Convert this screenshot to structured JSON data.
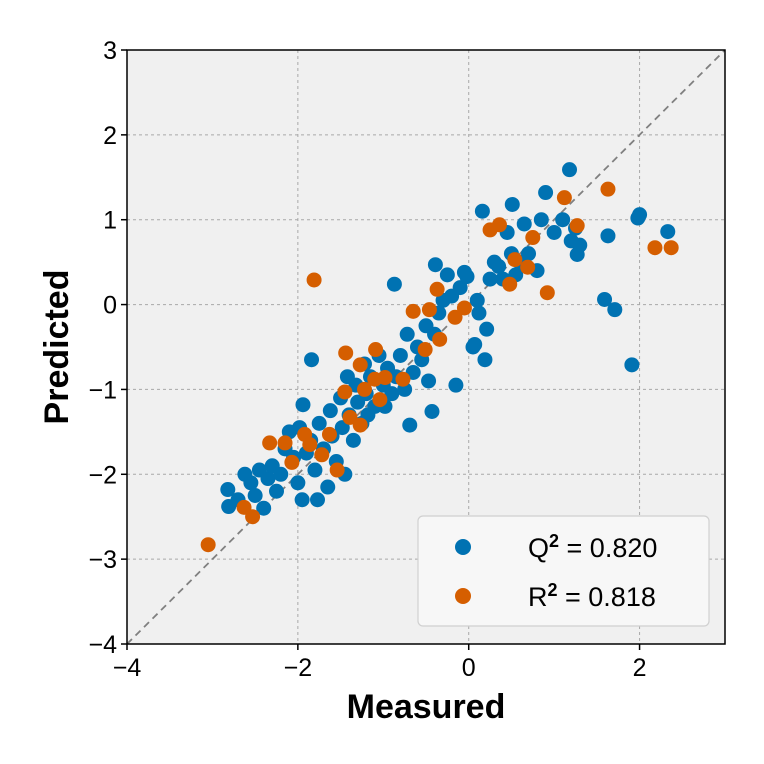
{
  "chart_data": {
    "type": "scatter",
    "title": "",
    "xlabel": "Measured",
    "ylabel": "Predicted",
    "xlim": [
      -4,
      3
    ],
    "ylim": [
      -4,
      3
    ],
    "xticks": [
      "−4",
      "−2",
      "0",
      "2"
    ],
    "xtick_values": [
      -4,
      -2,
      0,
      2
    ],
    "yticks": [
      "−4",
      "−3",
      "−2",
      "−1",
      "0",
      "1",
      "2",
      "3"
    ],
    "ytick_values": [
      -4,
      -3,
      -2,
      -1,
      0,
      1,
      2,
      3
    ],
    "grid": true,
    "reference_line": {
      "style": "dashed",
      "from": [
        -4,
        -4
      ],
      "to": [
        3,
        3
      ],
      "color": "#808080"
    },
    "legend_position": "bottom-right",
    "series": [
      {
        "name": "Q² = 0.820",
        "label_base": "Q",
        "label_sup": "2",
        "label_value": " = 0.820",
        "color": "#0072B2",
        "points": [
          [
            -2.82,
            -2.18
          ],
          [
            -2.81,
            -2.38
          ],
          [
            -2.7,
            -2.3
          ],
          [
            -2.62,
            -2.0
          ],
          [
            -2.55,
            -2.1
          ],
          [
            -2.5,
            -2.25
          ],
          [
            -2.45,
            -1.95
          ],
          [
            -2.4,
            -2.4
          ],
          [
            -2.35,
            -2.05
          ],
          [
            -2.3,
            -1.9
          ],
          [
            -2.25,
            -2.2
          ],
          [
            -2.2,
            -2.0
          ],
          [
            -2.15,
            -1.7
          ],
          [
            -2.1,
            -1.5
          ],
          [
            -2.05,
            -1.8
          ],
          [
            -2.0,
            -2.1
          ],
          [
            -1.98,
            -1.45
          ],
          [
            -1.95,
            -2.3
          ],
          [
            -1.94,
            -1.18
          ],
          [
            -1.9,
            -1.75
          ],
          [
            -1.85,
            -1.6
          ],
          [
            -1.84,
            -0.65
          ],
          [
            -1.8,
            -1.95
          ],
          [
            -1.77,
            -2.3
          ],
          [
            -1.75,
            -1.4
          ],
          [
            -1.7,
            -1.7
          ],
          [
            -1.65,
            -2.15
          ],
          [
            -1.62,
            -1.25
          ],
          [
            -1.6,
            -1.55
          ],
          [
            -1.55,
            -1.85
          ],
          [
            -1.5,
            -1.1
          ],
          [
            -1.48,
            -1.45
          ],
          [
            -1.45,
            -2.0
          ],
          [
            -1.42,
            -0.85
          ],
          [
            -1.4,
            -1.3
          ],
          [
            -1.35,
            -1.6
          ],
          [
            -1.32,
            -0.95
          ],
          [
            -1.3,
            -1.15
          ],
          [
            -1.25,
            -1.4
          ],
          [
            -1.22,
            -0.7
          ],
          [
            -1.2,
            -1.05
          ],
          [
            -1.18,
            -1.3
          ],
          [
            -1.15,
            -0.85
          ],
          [
            -1.1,
            -1.2
          ],
          [
            -1.05,
            -0.6
          ],
          [
            -1.0,
            -0.95
          ],
          [
            -0.98,
            -1.2
          ],
          [
            -0.95,
            -0.75
          ],
          [
            -0.9,
            -1.05
          ],
          [
            -0.87,
            0.24
          ],
          [
            -0.85,
            -0.85
          ],
          [
            -0.8,
            -0.6
          ],
          [
            -0.75,
            -1.0
          ],
          [
            -0.72,
            -0.35
          ],
          [
            -0.69,
            -1.42
          ],
          [
            -0.65,
            -0.8
          ],
          [
            -0.6,
            -0.5
          ],
          [
            -0.55,
            -0.65
          ],
          [
            -0.5,
            -0.25
          ],
          [
            -0.47,
            -0.9
          ],
          [
            -0.43,
            -1.26
          ],
          [
            -0.4,
            -0.35
          ],
          [
            -0.39,
            0.47
          ],
          [
            -0.35,
            -0.1
          ],
          [
            -0.3,
            0.05
          ],
          [
            -0.25,
            0.35
          ],
          [
            -0.2,
            0.1
          ],
          [
            -0.15,
            -0.95
          ],
          [
            -0.1,
            0.2
          ],
          [
            -0.05,
            0.38
          ],
          [
            -0.02,
            0.33
          ],
          [
            0.05,
            -0.5
          ],
          [
            0.07,
            -0.47
          ],
          [
            0.1,
            0.05
          ],
          [
            0.12,
            -0.1
          ],
          [
            0.16,
            1.1
          ],
          [
            0.19,
            -0.65
          ],
          [
            0.21,
            -0.29
          ],
          [
            0.25,
            0.3
          ],
          [
            0.3,
            0.5
          ],
          [
            0.35,
            0.45
          ],
          [
            0.4,
            0.3
          ],
          [
            0.45,
            0.85
          ],
          [
            0.5,
            0.6
          ],
          [
            0.51,
            1.18
          ],
          [
            0.55,
            0.35
          ],
          [
            0.6,
            0.5
          ],
          [
            0.65,
            0.95
          ],
          [
            0.7,
            0.6
          ],
          [
            0.8,
            0.4
          ],
          [
            0.85,
            1.0
          ],
          [
            0.9,
            1.32
          ],
          [
            1.0,
            0.85
          ],
          [
            1.1,
            1.0
          ],
          [
            1.18,
            1.59
          ],
          [
            1.2,
            0.75
          ],
          [
            1.25,
            0.9
          ],
          [
            1.27,
            0.59
          ],
          [
            1.3,
            0.7
          ],
          [
            1.59,
            0.06
          ],
          [
            1.63,
            0.81
          ],
          [
            1.71,
            -0.06
          ],
          [
            1.91,
            -0.71
          ],
          [
            1.98,
            1.02
          ],
          [
            2.0,
            1.06
          ],
          [
            2.33,
            0.86
          ]
        ]
      },
      {
        "name": "R² = 0.818",
        "label_base": "R",
        "label_sup": "2",
        "label_value": " = 0.818",
        "color": "#D55E00",
        "points": [
          [
            -3.05,
            -2.83
          ],
          [
            -2.63,
            -2.39
          ],
          [
            -2.53,
            -2.5
          ],
          [
            -1.81,
            0.29
          ],
          [
            -2.33,
            -1.63
          ],
          [
            -2.15,
            -1.63
          ],
          [
            -2.07,
            -1.86
          ],
          [
            -1.92,
            -1.53
          ],
          [
            -1.86,
            -1.65
          ],
          [
            -1.72,
            -1.77
          ],
          [
            -1.63,
            -1.53
          ],
          [
            -1.54,
            -1.95
          ],
          [
            -1.45,
            -1.03
          ],
          [
            -1.39,
            -1.33
          ],
          [
            -1.27,
            -1.42
          ],
          [
            -1.22,
            -1.0
          ],
          [
            -1.1,
            -0.88
          ],
          [
            -1.04,
            -1.12
          ],
          [
            -0.98,
            -0.86
          ],
          [
            -0.77,
            -0.88
          ],
          [
            -0.65,
            -0.08
          ],
          [
            -0.51,
            -0.53
          ],
          [
            -0.46,
            -0.06
          ],
          [
            -0.37,
            0.18
          ],
          [
            -0.34,
            -0.41
          ],
          [
            -0.16,
            -0.15
          ],
          [
            -0.05,
            -0.04
          ],
          [
            0.25,
            0.88
          ],
          [
            0.36,
            0.94
          ],
          [
            0.48,
            0.24
          ],
          [
            0.54,
            0.53
          ],
          [
            0.69,
            0.44
          ],
          [
            0.75,
            0.79
          ],
          [
            0.92,
            0.14
          ],
          [
            1.12,
            1.26
          ],
          [
            1.27,
            0.93
          ],
          [
            1.63,
            1.36
          ],
          [
            2.18,
            0.67
          ],
          [
            2.37,
            0.67
          ],
          [
            -1.44,
            -0.57
          ],
          [
            -1.09,
            -0.53
          ],
          [
            -1.27,
            -0.71
          ]
        ]
      }
    ]
  }
}
